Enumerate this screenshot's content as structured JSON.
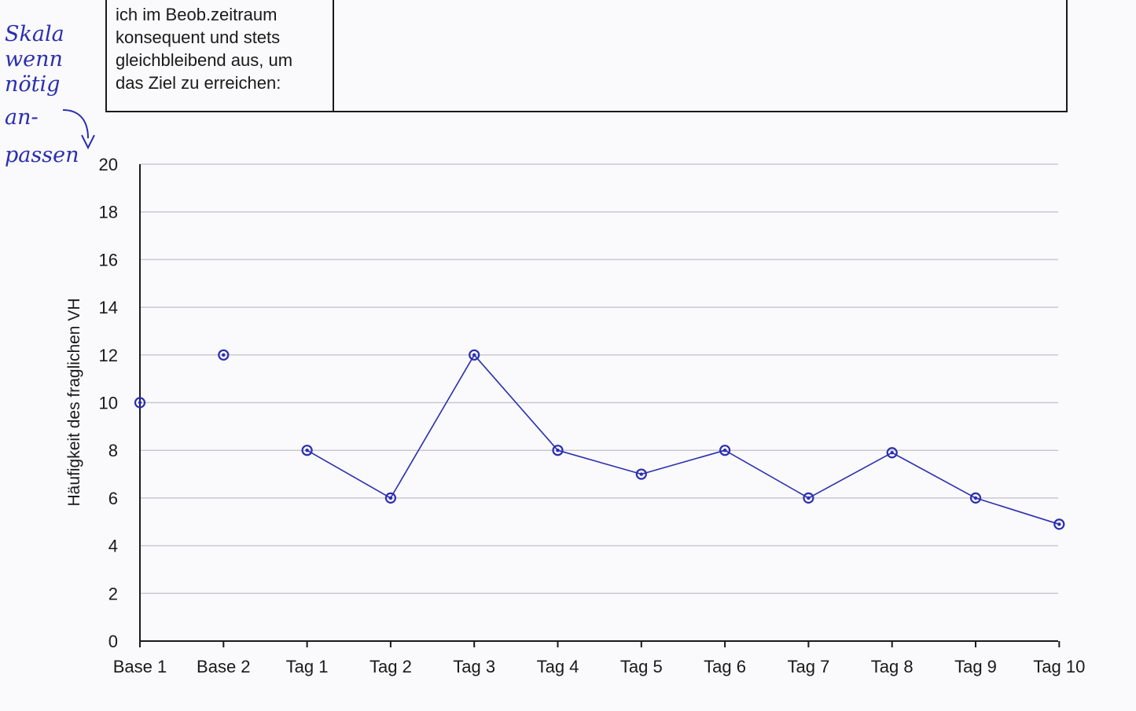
{
  "header_box": {
    "lines": [
      "ich im Beob.zeitraum",
      "konsequent und stets",
      "gleichbleibend aus, um",
      "das Ziel zu erreichen:"
    ]
  },
  "handwritten_note": {
    "lines": [
      "Skala",
      "wenn",
      "nötig",
      "an-",
      "passen"
    ]
  },
  "colors": {
    "ink": "#2a2fb0",
    "grid": "#c9c9cf",
    "axis": "#1a1a1a"
  },
  "chart_data": {
    "type": "line",
    "title": "",
    "xlabel": "",
    "ylabel": "Häufigkeit des fraglichen VH",
    "ylim": [
      0,
      20
    ],
    "yticks": [
      0,
      2,
      4,
      6,
      8,
      10,
      12,
      14,
      16,
      18,
      20
    ],
    "grid": true,
    "categories": [
      "Base 1",
      "Base 2",
      "Tag 1",
      "Tag 2",
      "Tag 3",
      "Tag 4",
      "Tag 5",
      "Tag 6",
      "Tag 7",
      "Tag 8",
      "Tag 9",
      "Tag 10"
    ],
    "series": [
      {
        "values": [
          10,
          12,
          8,
          6,
          12,
          8,
          7,
          8,
          6,
          7.9,
          6,
          4.9
        ],
        "connected_from_index": 2
      }
    ]
  }
}
